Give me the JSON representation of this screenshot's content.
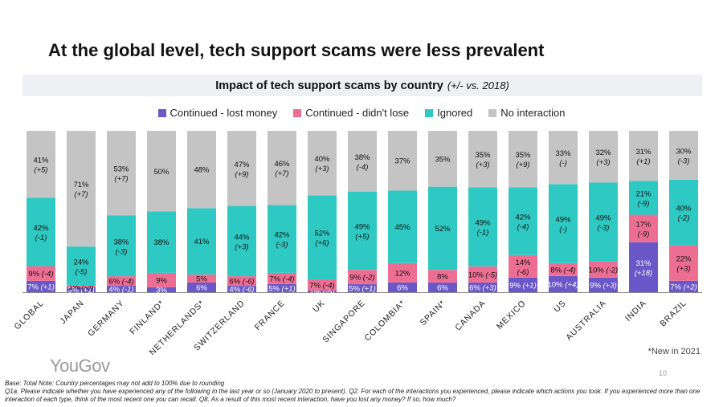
{
  "title": "At the global level, tech support scams were less prevalent",
  "subtitle": "Impact of tech support scams by country",
  "subtitle_note": "(+/- vs. 2018)",
  "colors": {
    "lost": "#6a58c8",
    "didnt_lose": "#ec6f93",
    "ignored": "#2ec9c2",
    "no_interaction": "#c4c4c4"
  },
  "legend": [
    {
      "label": "Continued - lost money",
      "color": "#6a58c8"
    },
    {
      "label": "Continued - didn't lose",
      "color": "#ec6f93"
    },
    {
      "label": "Ignored",
      "color": "#2ec9c2"
    },
    {
      "label": "No interaction",
      "color": "#c4c4c4"
    }
  ],
  "chart_data": {
    "type": "bar",
    "stacked": true,
    "normalized_percent": true,
    "categories": [
      "GLOBAL",
      "JAPAN",
      "GERMANY",
      "FINLAND*",
      "NETHERLANDS*",
      "SWITZERLAND",
      "FRANCE",
      "UK",
      "SINGAPORE",
      "COLOMBIA*",
      "SPAIN*",
      "CANADA",
      "MEXICO",
      "US",
      "AUSTRALIA",
      "INDIA",
      "BRAZIL"
    ],
    "ylim": [
      0,
      100
    ],
    "series": [
      {
        "name": "Continued - lost money",
        "values": [
          7,
          3,
          4,
          3,
          6,
          4,
          5,
          1,
          5,
          6,
          6,
          6,
          9,
          10,
          9,
          31,
          7
        ],
        "labels": [
          "7% (+1)",
          "3% (+1)",
          "4% (-1)",
          "3%",
          "6%",
          "4% (-6)",
          "5% (+1)",
          "1% (-5)",
          "5% (+1)",
          "6%",
          "6%",
          "6% (+3)",
          "9% (+1)",
          "10% (+4)",
          "9% (+3)",
          "31% (+18)",
          "7% (+2)"
        ]
      },
      {
        "name": "Continued - didn't lose",
        "values": [
          9,
          1,
          6,
          9,
          5,
          6,
          7,
          7,
          9,
          12,
          8,
          10,
          14,
          8,
          10,
          17,
          22
        ],
        "labels": [
          "9% (-4)",
          "1% (-3)",
          "6% (-4)",
          "9%",
          "5%",
          "6% (-6)",
          "7% (-4)",
          "7% (-4)",
          "9% (-2)",
          "12%",
          "8%",
          "10% (-5)",
          "14% (-6)",
          "8% (-4)",
          "10% (-2)",
          "17% (-9)",
          "22% (+3)"
        ]
      },
      {
        "name": "Ignored",
        "values": [
          42,
          24,
          38,
          38,
          41,
          44,
          42,
          52,
          49,
          45,
          52,
          49,
          42,
          49,
          49,
          21,
          40
        ],
        "labels": [
          "42% (-1)",
          "24% (-5)",
          "38% (-3)",
          "38%",
          "41%",
          "44% (+3)",
          "42% (-3)",
          "52% (+6)",
          "49% (+5)",
          "45%",
          "52%",
          "49% (-1)",
          "42% (-4)",
          "49% (-)",
          "49% (-3)",
          "21% (-9)",
          "40% (-2)"
        ]
      },
      {
        "name": "No interaction",
        "values": [
          41,
          71,
          53,
          50,
          48,
          47,
          46,
          40,
          38,
          37,
          35,
          35,
          35,
          33,
          32,
          31,
          30
        ],
        "labels": [
          "41% (+5)",
          "71% (+7)",
          "53% (+7)",
          "50%",
          "48%",
          "47% (+9)",
          "46% (+7)",
          "40% (+3)",
          "38% (-4)",
          "37%",
          "35%",
          "35% (+3)",
          "35% (+9)",
          "33% (-)",
          "32% (+3)",
          "31% (+1)",
          "30% (-3)"
        ]
      }
    ]
  },
  "new_note": "*New in 2021",
  "page_number": "10",
  "logo": "YouGov",
  "footnote_1": "Base: Total  Note: Country percentages may not add to 100% due to rounding",
  "footnote_2": "Q1a. Please indicate whether you have experienced any of the following in the last year or so (January 2020 to present). Q2. For each of the interactions you experienced, please indicate which actions you took. If you experienced more than one interaction of each type, think of the most recent one you can recall. Q8. As a result of this most recent interaction, have you lost any money? If so, how much?"
}
